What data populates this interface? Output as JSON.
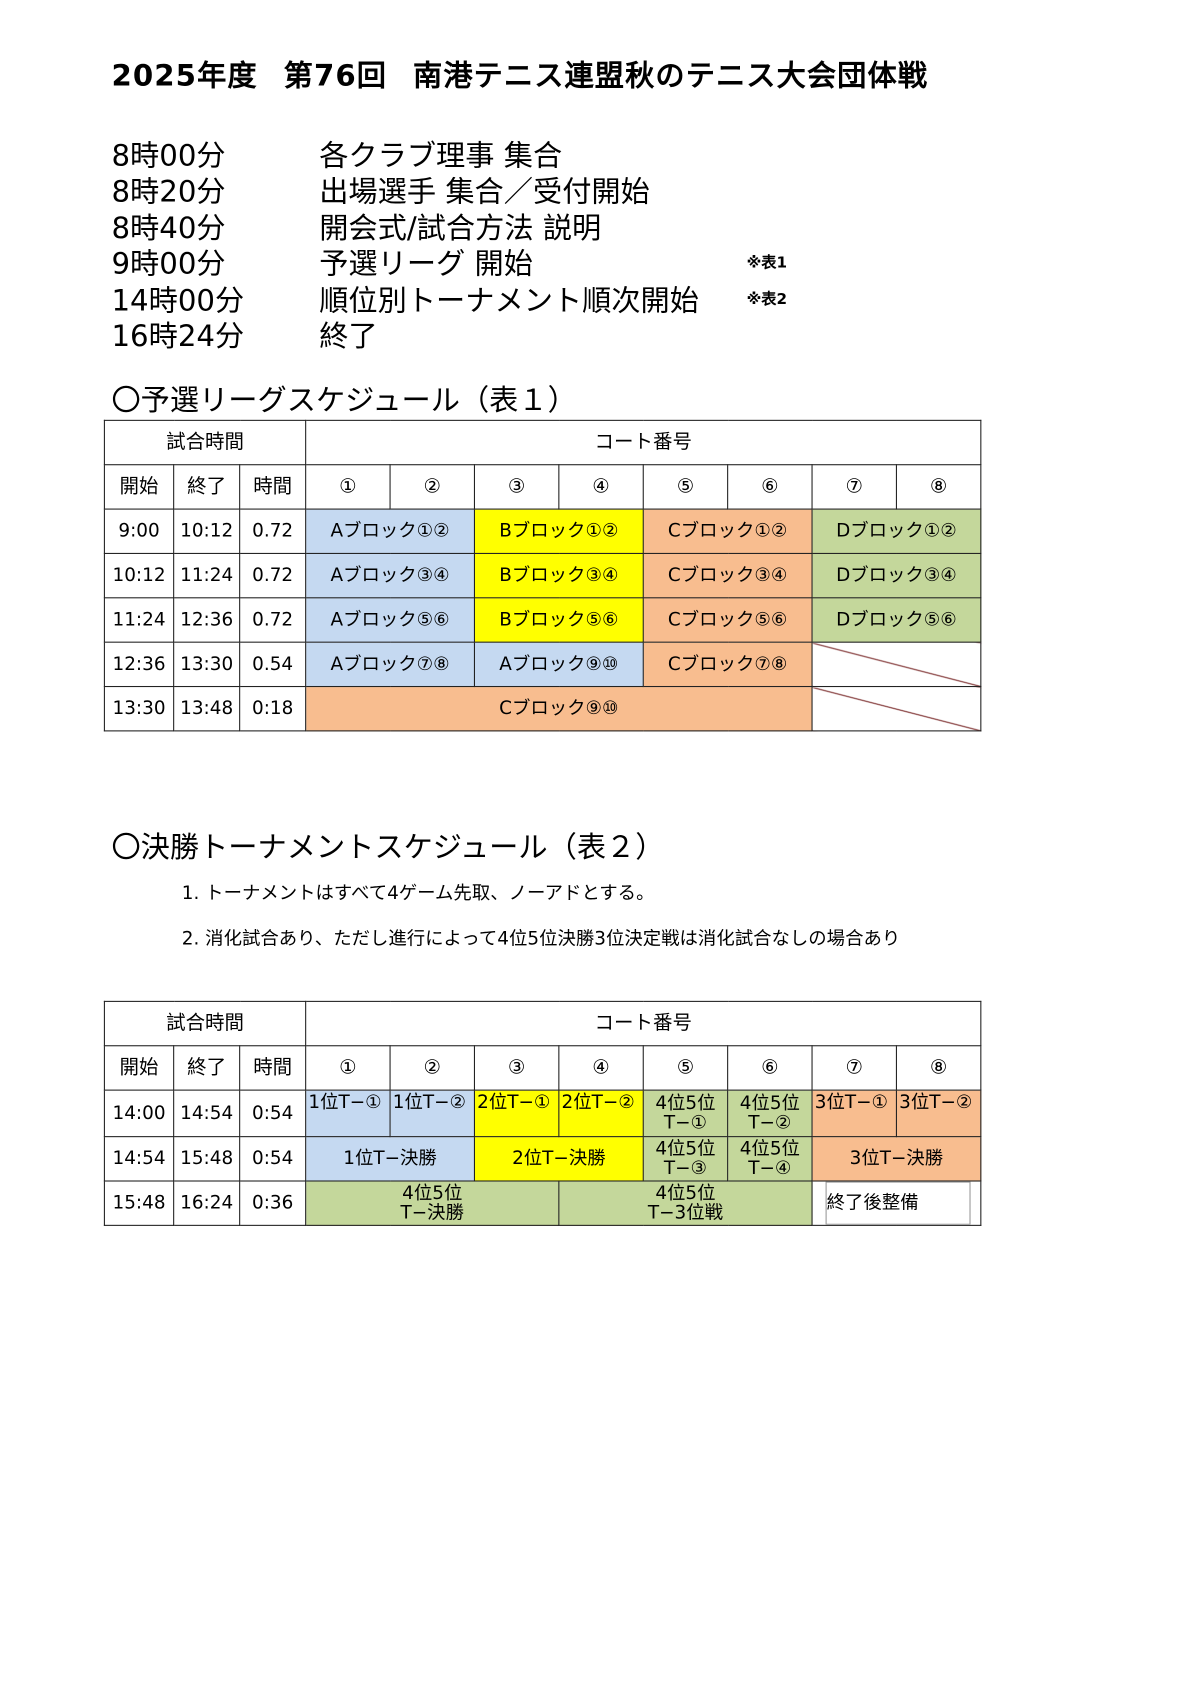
{
  "title": {
    "year": "2025年度",
    "edition": "第76回",
    "name": "南港テニス連盟秋のテニス大会団体戦"
  },
  "schedule": [
    {
      "time": "8時00分",
      "desc": "各クラブ理事 集合",
      "note": ""
    },
    {
      "time": "8時20分",
      "desc": "出場選手 集合／受付開始",
      "note": ""
    },
    {
      "time": "8時40分",
      "desc": "開会式/試合方法 説明",
      "note": ""
    },
    {
      "time": "9時00分",
      "desc": "予選リーグ 開始",
      "note": "※表1"
    },
    {
      "time": "14時00分",
      "desc": "順位別トーナメント順次開始",
      "note": "※表2"
    },
    {
      "time": "16時24分",
      "desc": "終了",
      "note": ""
    }
  ],
  "colors": {
    "A": "#c5d9f1",
    "B": "#ffff00",
    "C": "#f8bd8f",
    "D": "#c4d79b"
  },
  "headers": {
    "match_time": "試合時間",
    "court": "コート番号",
    "start": "開始",
    "end": "終了",
    "duration": "時間",
    "courts": [
      "①",
      "②",
      "③",
      "④",
      "⑤",
      "⑥",
      "⑦",
      "⑧"
    ]
  },
  "table1": {
    "heading": "〇予選リーグスケジュール（表１）",
    "rows": [
      {
        "start": "9:00",
        "end": "10:12",
        "dur": "0.72",
        "cells": [
          "Aブロック①②",
          "Bブロック①②",
          "Cブロック①②",
          "Dブロック①②"
        ]
      },
      {
        "start": "10:12",
        "end": "11:24",
        "dur": "0.72",
        "cells": [
          "Aブロック③④",
          "Bブロック③④",
          "Cブロック③④",
          "Dブロック③④"
        ]
      },
      {
        "start": "11:24",
        "end": "12:36",
        "dur": "0.72",
        "cells": [
          "Aブロック⑤⑥",
          "Bブロック⑤⑥",
          "Cブロック⑤⑥",
          "Dブロック⑤⑥"
        ]
      },
      {
        "start": "12:36",
        "end": "13:30",
        "dur": "0.54",
        "cells": [
          "Aブロック⑦⑧",
          "Aブロック⑨⑩",
          "Cブロック⑦⑧"
        ]
      },
      {
        "start": "13:30",
        "end": "13:48",
        "dur": "0:18",
        "cells": [
          "Cブロック⑨⑩"
        ]
      }
    ]
  },
  "table2": {
    "heading": "〇決勝トーナメントスケジュール（表２）",
    "rules": [
      "1. トーナメントはすべて4ゲーム先取、ノーアドとする。",
      "2. 消化試合あり、ただし進行によって4位5位決勝3位決定戦は消化試合なしの場合あり"
    ],
    "rows": [
      {
        "start": "14:00",
        "end": "14:54",
        "dur": "0:54",
        "cells": [
          "1位T−①",
          "1位T−②",
          "2位T−①",
          "2位T−②",
          "4位5位\nT−①",
          "4位5位\nT−②",
          "3位T−①",
          "3位T−②"
        ]
      },
      {
        "start": "14:54",
        "end": "15:48",
        "dur": "0:54",
        "cells": [
          "1位T−決勝",
          "2位T−決勝",
          "4位5位\nT−③",
          "4位5位\nT−④",
          "3位T−決勝"
        ]
      },
      {
        "start": "15:48",
        "end": "16:24",
        "dur": "0:36",
        "cells": [
          "4位5位\nT−決勝",
          "4位5位\nT−3位戦",
          "終了後整備"
        ]
      }
    ]
  }
}
